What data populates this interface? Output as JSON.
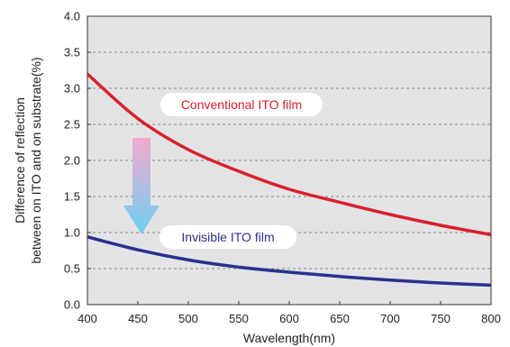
{
  "chart_data": {
    "type": "line",
    "title": "",
    "xlabel": "Wavelength(nm)",
    "ylabel_lines": [
      "Difference of reflection",
      "between on ITO and on substrate(%)"
    ],
    "xlim": [
      400,
      800
    ],
    "ylim": [
      0,
      4.0
    ],
    "x_ticks": [
      400,
      450,
      500,
      550,
      600,
      650,
      700,
      750,
      800
    ],
    "y_ticks": [
      "0.0",
      "0.5",
      "1.0",
      "1.5",
      "2.0",
      "2.5",
      "3.0",
      "3.5",
      "4.0"
    ],
    "grid": "horizontal-dashed",
    "series": [
      {
        "name": "Conventional ITO film",
        "color": "#d8202a",
        "x": [
          400,
          450,
          500,
          550,
          600,
          650,
          700,
          750,
          800
        ],
        "y": [
          3.2,
          2.58,
          2.15,
          1.85,
          1.6,
          1.42,
          1.25,
          1.1,
          0.97
        ]
      },
      {
        "name": "Invisible ITO film",
        "color": "#2b2f8c",
        "x": [
          400,
          450,
          500,
          550,
          600,
          650,
          700,
          750,
          800
        ],
        "y": [
          0.94,
          0.76,
          0.62,
          0.52,
          0.45,
          0.39,
          0.34,
          0.3,
          0.27
        ]
      }
    ],
    "annotation": "down-arrow-gradient",
    "colors": {
      "plot_background": "#e3e3e6",
      "grid": "#8a8a8a",
      "arrow_top": "#f4a9cf",
      "arrow_bottom": "#6dd0f2"
    }
  }
}
